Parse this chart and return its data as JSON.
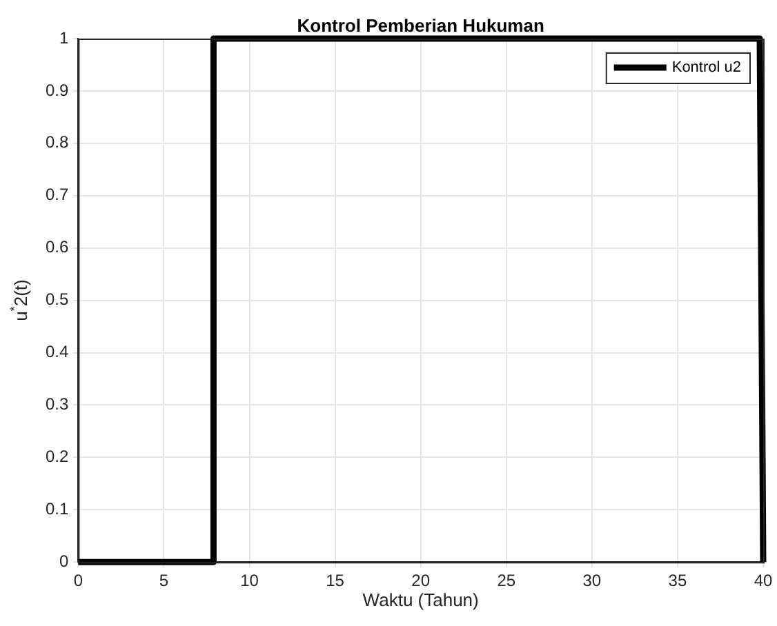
{
  "chart_data": {
    "type": "line",
    "title": "Kontrol Pemberian Hukuman",
    "xlabel": "Waktu (Tahun)",
    "ylabel": "u$^{*}$2(t)",
    "x": [
      0,
      7.9,
      7.9,
      39.8,
      40
    ],
    "series": [
      {
        "name": "Kontrol u2",
        "color": "#000000",
        "values": [
          0,
          0,
          1,
          1,
          0
        ]
      }
    ],
    "xlim": [
      0,
      40
    ],
    "xticks": [
      0,
      5,
      10,
      15,
      20,
      25,
      30,
      35,
      40
    ],
    "ylim": [
      0,
      1
    ],
    "yticks": [
      0,
      0.1,
      0.2,
      0.3,
      0.4,
      0.5,
      0.6,
      0.7,
      0.8,
      0.9,
      1
    ],
    "grid": true,
    "legend": "top right",
    "marker": "none",
    "line_style": "solid"
  }
}
